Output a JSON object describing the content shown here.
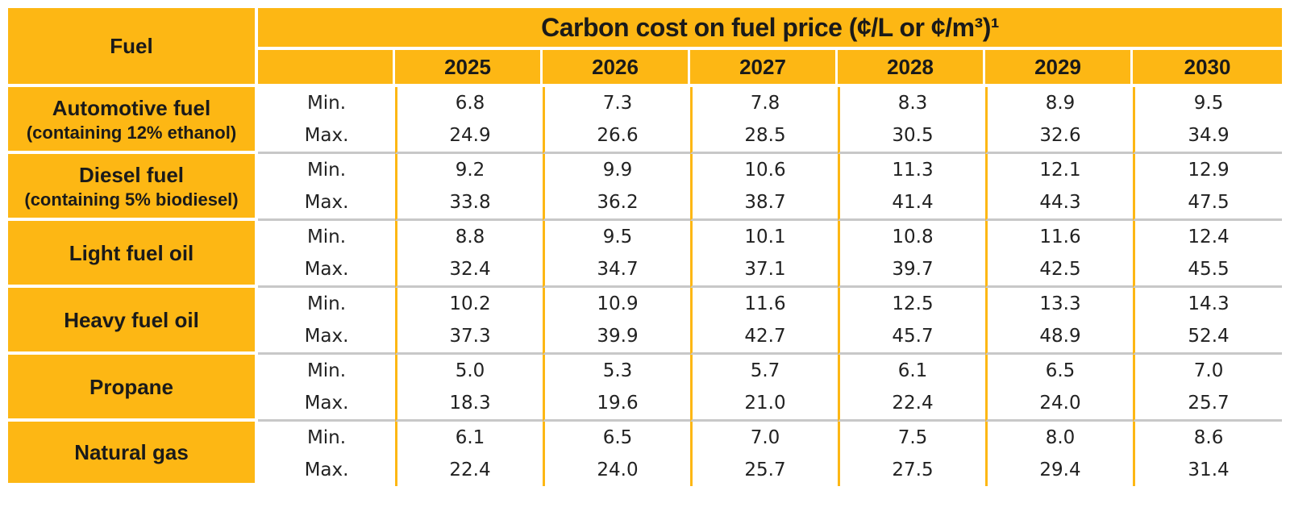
{
  "header": {
    "fuel_label": "Fuel",
    "title": "Carbon cost on fuel price (¢/L or ¢/m³)¹",
    "years": [
      "2025",
      "2026",
      "2027",
      "2028",
      "2029",
      "2030"
    ]
  },
  "rows": [
    {
      "fuel": "Automotive fuel",
      "note": "(containing 12% ethanol)",
      "min_label": "Min.",
      "max_label": "Max.",
      "min": [
        "6.8",
        "7.3",
        "7.8",
        "8.3",
        "8.9",
        "9.5"
      ],
      "max": [
        "24.9",
        "26.6",
        "28.5",
        "30.5",
        "32.6",
        "34.9"
      ]
    },
    {
      "fuel": "Diesel fuel",
      "note": "(containing 5% biodiesel)",
      "min_label": "Min.",
      "max_label": "Max.",
      "min": [
        "9.2",
        "9.9",
        "10.6",
        "11.3",
        "12.1",
        "12.9"
      ],
      "max": [
        "33.8",
        "36.2",
        "38.7",
        "41.4",
        "44.3",
        "47.5"
      ]
    },
    {
      "fuel": "Light fuel oil",
      "note": "",
      "min_label": "Min.",
      "max_label": "Max.",
      "min": [
        "8.8",
        "9.5",
        "10.1",
        "10.8",
        "11.6",
        "12.4"
      ],
      "max": [
        "32.4",
        "34.7",
        "37.1",
        "39.7",
        "42.5",
        "45.5"
      ]
    },
    {
      "fuel": "Heavy fuel oil",
      "note": "",
      "min_label": "Min.",
      "max_label": "Max.",
      "min": [
        "10.2",
        "10.9",
        "11.6",
        "12.5",
        "13.3",
        "14.3"
      ],
      "max": [
        "37.3",
        "39.9",
        "42.7",
        "45.7",
        "48.9",
        "52.4"
      ]
    },
    {
      "fuel": "Propane",
      "note": "",
      "min_label": "Min.",
      "max_label": "Max.",
      "min": [
        "5.0",
        "5.3",
        "5.7",
        "6.1",
        "6.5",
        "7.0"
      ],
      "max": [
        "18.3",
        "19.6",
        "21.0",
        "22.4",
        "24.0",
        "25.7"
      ]
    },
    {
      "fuel": "Natural gas",
      "note": "",
      "min_label": "Min.",
      "max_label": "Max.",
      "min": [
        "6.1",
        "6.5",
        "7.0",
        "7.5",
        "8.0",
        "8.6"
      ],
      "max": [
        "22.4",
        "24.0",
        "25.7",
        "27.5",
        "29.4",
        "31.4"
      ]
    }
  ],
  "colors": {
    "header_bg": "#FDB714",
    "separator": "#c8c8c8"
  }
}
